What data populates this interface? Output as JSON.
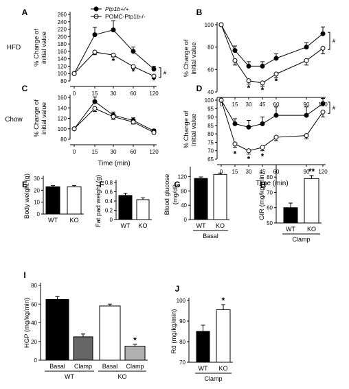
{
  "legend": [
    "Ptp1b+/+",
    "POMC-Ptp1b-/-"
  ],
  "chart_data": [
    {
      "panel": "A",
      "row_label": "HFD",
      "type": "line",
      "ylabel": "% Change of initial value",
      "xlabel": "",
      "x": [
        0,
        15,
        30,
        60,
        120
      ],
      "ylim": [
        80,
        260
      ],
      "yticks": [
        80,
        100,
        120,
        140,
        160,
        180,
        200,
        220,
        240,
        260
      ],
      "series": [
        {
          "name": "Ptp1b+/+",
          "values": [
            100,
            205,
            218,
            160,
            112
          ],
          "err": [
            0,
            20,
            25,
            12,
            8
          ]
        },
        {
          "name": "POMC-Ptp1b-/-",
          "values": [
            100,
            158,
            150,
            119,
            93
          ],
          "err": [
            0,
            7,
            5,
            5,
            6
          ]
        }
      ],
      "stars": [
        {
          "x": 30,
          "y": 136
        },
        {
          "x": 60,
          "y": 107
        },
        {
          "x": 120,
          "y": 83
        }
      ],
      "bracket": "#"
    },
    {
      "panel": "B",
      "row_label": "",
      "type": "line",
      "ylabel": "% Change of initial value",
      "xlabel": "",
      "x": [
        0,
        15,
        30,
        45,
        60,
        90,
        120
      ],
      "ylim": [
        40,
        100
      ],
      "yticks": [
        40,
        60,
        80,
        100
      ],
      "series": [
        {
          "name": "Ptp1b+/+",
          "values": [
            100,
            77,
            63,
            63,
            70,
            80,
            92
          ],
          "err": [
            0,
            4,
            4,
            4,
            4,
            4,
            6
          ]
        },
        {
          "name": "POMC-Ptp1b-/-",
          "values": [
            100,
            68,
            50,
            48,
            56,
            68,
            79
          ],
          "err": [
            0,
            4,
            3,
            3,
            3,
            4,
            5
          ]
        }
      ],
      "stars": [
        {
          "x": 30,
          "y": 44
        },
        {
          "x": 45,
          "y": 42
        },
        {
          "x": 60,
          "y": 50
        }
      ],
      "bracket": "#"
    },
    {
      "panel": "C",
      "row_label": "Chow",
      "type": "line",
      "ylabel": "% Change of initial value",
      "xlabel": "Time (min)",
      "x": [
        0,
        15,
        30,
        60,
        120
      ],
      "ylim": [
        80,
        160
      ],
      "yticks": [
        80,
        100,
        120,
        140,
        160
      ],
      "series": [
        {
          "name": "Ptp1b+/+",
          "values": [
            100,
            152,
            126,
            116,
            96
          ],
          "err": [
            0,
            9,
            6,
            5,
            3
          ]
        },
        {
          "name": "POMC-Ptp1b-/-",
          "values": [
            100,
            139,
            123,
            113,
            93
          ],
          "err": [
            0,
            6,
            5,
            4,
            3
          ]
        }
      ],
      "stars": [],
      "bracket": ""
    },
    {
      "panel": "D",
      "row_label": "",
      "type": "line",
      "ylabel": "% Change of initial value",
      "xlabel": "Time (min)",
      "x": [
        0,
        15,
        30,
        45,
        60,
        90,
        120
      ],
      "ylim": [
        65,
        100
      ],
      "yticks": [
        65,
        70,
        75,
        80,
        85,
        90,
        95,
        100
      ],
      "series": [
        {
          "name": "Ptp1b+/+",
          "values": [
            100,
            86,
            84,
            86,
            91,
            91,
            98
          ],
          "err": [
            0,
            3,
            4,
            4,
            5,
            5,
            3
          ]
        },
        {
          "name": "POMC-Ptp1b-/-",
          "values": [
            100,
            74,
            70,
            72,
            78,
            79,
            93
          ],
          "err": [
            0,
            2,
            2,
            2,
            2,
            2,
            3
          ]
        }
      ],
      "stars": [
        {
          "x": 15,
          "y": 68.5
        },
        {
          "x": 30,
          "y": 65.5
        },
        {
          "x": 45,
          "y": 67
        }
      ],
      "bracket": "#"
    },
    {
      "panel": "E",
      "type": "bar",
      "ylabel": "Body weight (g)",
      "categories": [
        "WT",
        "KO"
      ],
      "values": [
        23,
        23
      ],
      "err": [
        1,
        1
      ],
      "ylim": [
        0,
        30
      ],
      "yticks": [
        0,
        10,
        20,
        30
      ],
      "fills": [
        "black",
        "white"
      ],
      "stars": [
        "",
        ""
      ],
      "group_labels": []
    },
    {
      "panel": "F",
      "type": "bar",
      "ylabel": "Fat pad weight (g)",
      "categories": [
        "WT",
        "KO"
      ],
      "values": [
        0.52,
        0.43
      ],
      "err": [
        0.05,
        0.04
      ],
      "ylim": [
        0,
        0.8
      ],
      "yticks": [
        0,
        0.2,
        0.4,
        0.6,
        0.8
      ],
      "fills": [
        "black",
        "white"
      ],
      "stars": [
        "",
        ""
      ],
      "group_labels": []
    },
    {
      "panel": "G",
      "type": "bar",
      "ylabel": "Blood glucose (mg/dl)",
      "categories": [
        "WT",
        "KO"
      ],
      "values": [
        115,
        126
      ],
      "err": [
        4,
        4
      ],
      "ylim": [
        0,
        140
      ],
      "yticks": [
        0,
        40,
        80,
        120
      ],
      "fills": [
        "black",
        "white"
      ],
      "stars": [
        "",
        ""
      ],
      "group_labels": [
        {
          "text": "Basal",
          "from": 0,
          "to": 1
        }
      ]
    },
    {
      "panel": "H",
      "type": "bar",
      "ylabel": "GIR (mg/kg/min)",
      "categories": [
        "WT",
        "KO"
      ],
      "values": [
        60,
        79
      ],
      "err": [
        3,
        2
      ],
      "ylim": [
        50,
        85
      ],
      "yticks": [
        50,
        60,
        70,
        80
      ],
      "fills": [
        "black",
        "white"
      ],
      "stars": [
        "",
        "**"
      ],
      "group_labels": [
        {
          "text": "Clamp",
          "from": 0,
          "to": 1
        }
      ]
    },
    {
      "panel": "I",
      "type": "bar",
      "ylabel": "HGP (mg/kg/min)",
      "categories": [
        "Basal",
        "Clamp",
        "Basal",
        "Clamp"
      ],
      "values": [
        65,
        25,
        58,
        15
      ],
      "err": [
        3,
        3,
        2,
        2
      ],
      "ylim": [
        0,
        80
      ],
      "yticks": [
        0,
        20,
        40,
        60,
        80
      ],
      "fills": [
        "black",
        "#666666",
        "white",
        "#b0b0b0"
      ],
      "stars": [
        "",
        "",
        "",
        "*"
      ],
      "group_labels": [
        {
          "text": "WT",
          "from": 0,
          "to": 1
        },
        {
          "text": "KO",
          "from": 2,
          "to": 3
        }
      ]
    },
    {
      "panel": "J",
      "type": "bar",
      "ylabel": "Rd (mg/kg/min)",
      "categories": [
        "WT",
        "KO"
      ],
      "values": [
        85,
        95.5
      ],
      "err": [
        3,
        2.5
      ],
      "ylim": [
        70,
        100
      ],
      "yticks": [
        70,
        80,
        90,
        100
      ],
      "fills": [
        "black",
        "white"
      ],
      "stars": [
        "",
        "*"
      ],
      "group_labels": [
        {
          "text": "Clamp",
          "from": 0,
          "to": 1
        }
      ]
    }
  ]
}
